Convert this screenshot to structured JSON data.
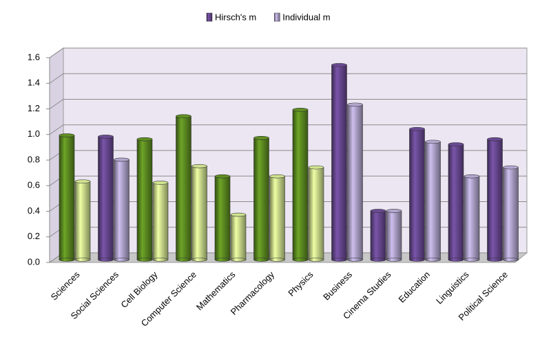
{
  "chart_data": {
    "type": "cylinder-bar",
    "categories": [
      "Sciences",
      "Social Sciences",
      "Cell Biology",
      "Computer Science",
      "Mathematics",
      "Pharmacology",
      "Physics",
      "Business",
      "Cinema Studies",
      "Education",
      "Linguistics",
      "Political Science"
    ],
    "series": [
      {
        "name": "Hirsch's m",
        "color": "#6a4a94",
        "values": [
          0.95,
          0.94,
          0.92,
          1.1,
          0.63,
          0.93,
          1.15,
          1.5,
          0.36,
          1.0,
          0.88,
          0.92
        ],
        "colors": [
          "#5f8f22",
          "#6a4a94",
          "#5f8f22",
          "#5f8f22",
          "#5f8f22",
          "#5f8f22",
          "#5f8f22",
          "#6a4a94",
          "#6a4a94",
          "#6a4a94",
          "#6a4a94",
          "#6a4a94"
        ]
      },
      {
        "name": "Individual m",
        "color": "#b3a6cf",
        "values": [
          0.59,
          0.76,
          0.58,
          0.71,
          0.33,
          0.63,
          0.7,
          1.19,
          0.36,
          0.9,
          0.63,
          0.7
        ],
        "colors": [
          "#cfe28f",
          "#b3a6cf",
          "#cfe28f",
          "#cfe28f",
          "#cfe28f",
          "#cfe28f",
          "#cfe28f",
          "#b3a6cf",
          "#b3a6cf",
          "#b3a6cf",
          "#b3a6cf",
          "#b3a6cf"
        ]
      }
    ],
    "ylim": [
      0,
      1.6
    ],
    "yticks": [
      {
        "value": 0,
        "label": "0.0"
      },
      0.2,
      0.4,
      0.6,
      0.8,
      {
        "value": 1,
        "label": "1.0"
      },
      1.2,
      1.4,
      1.6
    ],
    "grid": true,
    "legend": "top"
  }
}
